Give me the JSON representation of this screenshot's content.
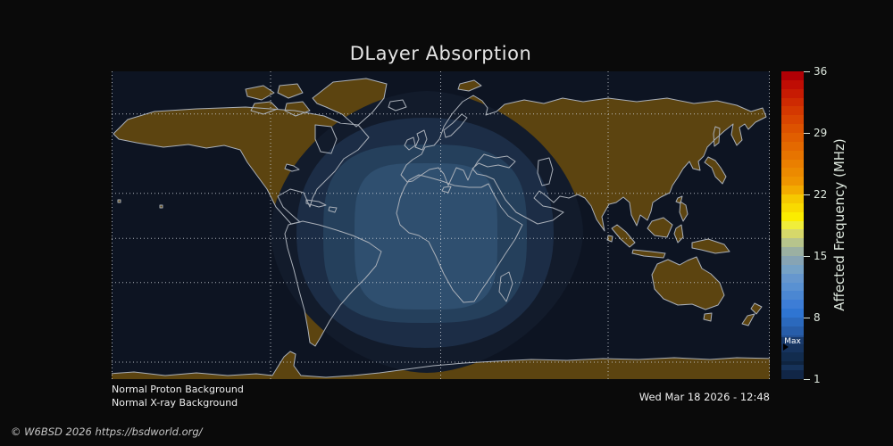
{
  "title": "DLayer Absorption",
  "colors": {
    "page_bg": "#0a0a0a",
    "ocean": "#0d1422",
    "land": "#5c4410",
    "coastline": "#a9afb8",
    "gridline": "#ccd1d8",
    "absorption_levels": [
      "#121b2b",
      "#1c2d46",
      "#25405c",
      "#2f4f6f"
    ]
  },
  "colorbar": {
    "label": "Affected Frequency (MHz)",
    "unit": "MHz",
    "min": 1,
    "max": 36,
    "ticks": [
      36,
      29,
      22,
      15,
      8,
      1
    ],
    "max_marker_label": "Max",
    "max_marker_value": 4,
    "segment_colors": [
      "#b10005",
      "#bf0d04",
      "#c71b03",
      "#ce2a02",
      "#d43801",
      "#d94501",
      "#dd5200",
      "#e15e00",
      "#e46900",
      "#e77400",
      "#ea7f00",
      "#ec8a00",
      "#ef9500",
      "#f3ab00",
      "#f6c800",
      "#f9da00",
      "#fbec00",
      "#f0ee3a",
      "#d6d86a",
      "#b7c48c",
      "#9bb0a2",
      "#87a4b4",
      "#76a2c6",
      "#6697ce",
      "#5991d2",
      "#4b87d2",
      "#3d7dd6",
      "#2f75d2",
      "#2b69bd",
      "#275da9",
      "#235195",
      "#1f4781",
      "#1a3d6d",
      "#163259",
      "#112646"
    ]
  },
  "status": {
    "proton": "Normal Proton Background",
    "xray": "Normal X-ray Background"
  },
  "timestamp": "Wed Mar 18 2026 - 12:48",
  "copyright": "© W6BSD 2026 https://bsdworld.org/"
}
